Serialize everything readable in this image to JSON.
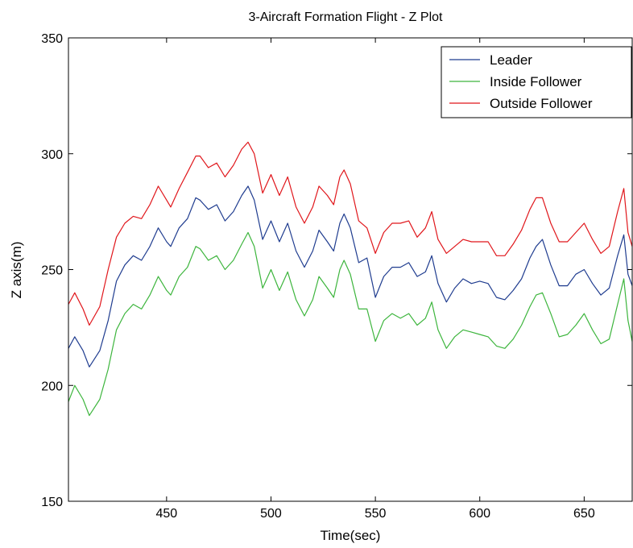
{
  "chart_data": {
    "type": "line",
    "title": "3-Aircraft Formation Flight - Z Plot",
    "xlabel": "Time(sec)",
    "ylabel": "Z axis(m)",
    "xlim": [
      403,
      673
    ],
    "ylim": [
      150,
      350
    ],
    "xticks": [
      450,
      500,
      550,
      600,
      650
    ],
    "yticks": [
      150,
      200,
      250,
      300,
      350
    ],
    "legend_position": "top-right",
    "series": [
      {
        "name": "Leader",
        "color": "#1f3c8f",
        "x": [
          403,
          406,
          410,
          413,
          418,
          422,
          426,
          430,
          434,
          438,
          442,
          446,
          450,
          452,
          456,
          460,
          464,
          466,
          470,
          474,
          478,
          482,
          486,
          489,
          492,
          496,
          500,
          504,
          508,
          512,
          516,
          520,
          523,
          527,
          530,
          533,
          535,
          538,
          542,
          546,
          550,
          554,
          558,
          562,
          566,
          570,
          574,
          577,
          580,
          584,
          588,
          592,
          596,
          600,
          604,
          608,
          612,
          616,
          620,
          624,
          627,
          630,
          634,
          638,
          642,
          646,
          650,
          654,
          658,
          662,
          666,
          669,
          671,
          673
        ],
        "values": [
          216,
          221,
          215,
          208,
          215,
          228,
          245,
          252,
          256,
          254,
          260,
          268,
          262,
          260,
          268,
          272,
          281,
          280,
          276,
          278,
          271,
          275,
          282,
          286,
          280,
          263,
          271,
          262,
          270,
          258,
          251,
          258,
          267,
          262,
          258,
          270,
          274,
          268,
          253,
          255,
          238,
          247,
          251,
          251,
          253,
          247,
          249,
          256,
          244,
          236,
          242,
          246,
          244,
          245,
          244,
          238,
          237,
          241,
          246,
          255,
          260,
          263,
          252,
          243,
          243,
          248,
          250,
          244,
          239,
          242,
          256,
          265,
          248,
          243
        ]
      },
      {
        "name": "Inside Follower",
        "color": "#3db53d",
        "x": [
          403,
          406,
          410,
          413,
          418,
          422,
          426,
          430,
          434,
          438,
          442,
          446,
          450,
          452,
          456,
          460,
          464,
          466,
          470,
          474,
          478,
          482,
          486,
          489,
          492,
          496,
          500,
          504,
          508,
          512,
          516,
          520,
          523,
          527,
          530,
          533,
          535,
          538,
          542,
          546,
          550,
          554,
          558,
          562,
          566,
          570,
          574,
          577,
          580,
          584,
          588,
          592,
          596,
          600,
          604,
          608,
          612,
          616,
          620,
          624,
          627,
          630,
          634,
          638,
          642,
          646,
          650,
          654,
          658,
          662,
          666,
          669,
          671,
          673
        ],
        "values": [
          193,
          200,
          194,
          187,
          194,
          207,
          224,
          231,
          235,
          233,
          239,
          247,
          241,
          239,
          247,
          251,
          260,
          259,
          254,
          256,
          250,
          254,
          261,
          266,
          260,
          242,
          250,
          241,
          249,
          237,
          230,
          237,
          247,
          242,
          238,
          250,
          254,
          248,
          233,
          233,
          219,
          228,
          231,
          229,
          231,
          226,
          229,
          236,
          224,
          216,
          221,
          224,
          223,
          222,
          221,
          217,
          216,
          220,
          226,
          234,
          239,
          240,
          231,
          221,
          222,
          226,
          231,
          224,
          218,
          220,
          235,
          246,
          228,
          219
        ]
      },
      {
        "name": "Outside Follower",
        "color": "#e0161b",
        "x": [
          403,
          406,
          410,
          413,
          418,
          422,
          426,
          430,
          434,
          438,
          442,
          446,
          450,
          452,
          456,
          460,
          464,
          466,
          470,
          474,
          478,
          482,
          486,
          489,
          492,
          496,
          500,
          504,
          508,
          512,
          516,
          520,
          523,
          527,
          530,
          533,
          535,
          538,
          542,
          546,
          550,
          554,
          558,
          562,
          566,
          570,
          574,
          577,
          580,
          584,
          588,
          592,
          596,
          600,
          604,
          608,
          612,
          616,
          620,
          624,
          627,
          630,
          634,
          638,
          642,
          646,
          650,
          654,
          658,
          662,
          666,
          669,
          671,
          673
        ],
        "values": [
          235,
          240,
          233,
          226,
          234,
          250,
          264,
          270,
          273,
          272,
          278,
          286,
          280,
          277,
          285,
          292,
          299,
          299,
          294,
          296,
          290,
          295,
          302,
          305,
          300,
          283,
          291,
          282,
          290,
          277,
          270,
          277,
          286,
          282,
          278,
          290,
          293,
          287,
          271,
          268,
          257,
          266,
          270,
          270,
          271,
          264,
          268,
          275,
          263,
          257,
          260,
          263,
          262,
          262,
          262,
          256,
          256,
          261,
          267,
          276,
          281,
          281,
          270,
          262,
          262,
          266,
          270,
          263,
          257,
          260,
          275,
          285,
          266,
          260
        ]
      }
    ]
  }
}
